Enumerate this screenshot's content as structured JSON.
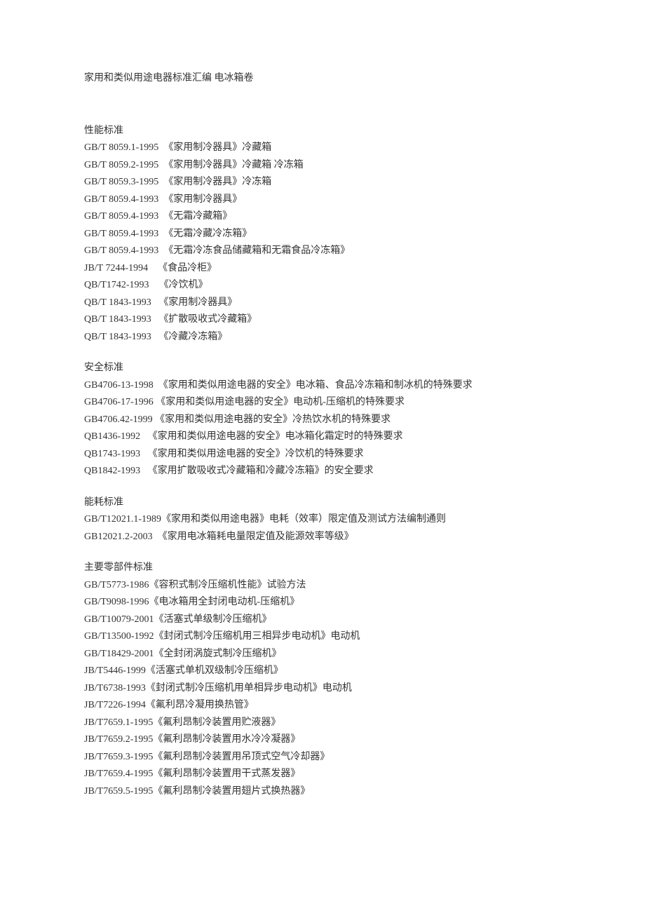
{
  "title": "家用和类似用途电器标准汇编 电冰箱卷",
  "sections": [
    {
      "header": "性能标准",
      "entries": [
        {
          "code": "GB/T 8059.1-1995",
          "sep": "  ",
          "text": "《家用制冷器具》冷藏箱"
        },
        {
          "code": "GB/T 8059.2-1995",
          "sep": "  ",
          "text": "《家用制冷器具》冷藏箱 冷冻箱"
        },
        {
          "code": "GB/T 8059.3-1995",
          "sep": "  ",
          "text": "《家用制冷器具》冷冻箱"
        },
        {
          "code": "GB/T 8059.4-1993",
          "sep": "  ",
          "text": "《家用制冷器具》"
        },
        {
          "code": "GB/T 8059.4-1993",
          "sep": "  ",
          "text": "《无霜冷藏箱》"
        },
        {
          "code": "GB/T 8059.4-1993",
          "sep": "  ",
          "text": "《无霜冷藏冷冻箱》"
        },
        {
          "code": "GB/T 8059.4-1993",
          "sep": "  ",
          "text": "《无霜冷冻食品储藏箱和无霜食品冷冻箱》"
        },
        {
          "code": "JB/T 7244-1994",
          "sep": "    ",
          "text": "《食品冷柜》"
        },
        {
          "code": "QB/T1742-1993",
          "sep": "    ",
          "text": "《冷饮机》"
        },
        {
          "code": "QB/T 1843-1993",
          "sep": "   ",
          "text": "《家用制冷器具》"
        },
        {
          "code": "QB/T 1843-1993",
          "sep": "   ",
          "text": "《扩散吸收式冷藏箱》"
        },
        {
          "code": "QB/T 1843-1993",
          "sep": "   ",
          "text": "《冷藏冷冻箱》"
        }
      ]
    },
    {
      "header": "安全标准",
      "entries": [
        {
          "code": "GB4706-13-1998",
          "sep": "  ",
          "text": "《家用和类似用途电器的安全》电冰箱、食品冷冻箱和制冰机的特殊要求"
        },
        {
          "code": "GB4706-17-1996",
          "sep": " ",
          "text": "《家用和类似用途电器的安全》电动机-压缩机的特殊要求"
        },
        {
          "code": "GB4706.42-1999",
          "sep": " ",
          "text": "《家用和类似用途电器的安全》冷热饮水机的特殊要求"
        },
        {
          "code": "QB1436-1992",
          "sep": "   ",
          "text": "《家用和类似用途电器的安全》电冰箱化霜定时的特殊要求"
        },
        {
          "code": "QB1743-1993",
          "sep": "   ",
          "text": "《家用和类似用途电器的安全》冷饮机的特殊要求"
        },
        {
          "code": "QB1842-1993",
          "sep": "   ",
          "text": "《家用扩散吸收式冷藏箱和冷藏冷冻箱》的安全要求"
        }
      ]
    },
    {
      "header": "能耗标准",
      "entries": [
        {
          "code": "GB/T12021.1-1989",
          "sep": "",
          "text": "《家用和类似用途电器》电耗（效率）限定值及测试方法编制通则"
        },
        {
          "code": "GB12021.2-2003",
          "sep": "  ",
          "text": "《家用电冰箱耗电量限定值及能源效率等级》"
        }
      ]
    },
    {
      "header": "主要零部件标准",
      "entries": [
        {
          "code": "GB/T5773-1986",
          "sep": "",
          "text": "《容积式制冷压缩机性能》试验方法"
        },
        {
          "code": "GB/T9098-1996",
          "sep": "",
          "text": "《电冰箱用全封闭电动机-压缩机》"
        },
        {
          "code": "GB/T10079-2001",
          "sep": "",
          "text": "《活塞式单级制冷压缩机》"
        },
        {
          "code": "GB/T13500-1992",
          "sep": "",
          "text": "《封闭式制冷压缩机用三相异步电动机》电动机"
        },
        {
          "code": "GB/T18429-2001",
          "sep": "",
          "text": "《全封闭涡旋式制冷压缩机》"
        },
        {
          "code": "JB/T5446-1999",
          "sep": "",
          "text": "《活塞式单机双级制冷压缩机》"
        },
        {
          "code": "JB/T6738-1993",
          "sep": "",
          "text": "《封闭式制冷压缩机用单相异步电动机》电动机"
        },
        {
          "code": "JB/T7226-1994",
          "sep": "",
          "text": "《氟利昂冷凝用换热管》"
        },
        {
          "code": "JB/T7659.1-1995",
          "sep": "",
          "text": "《氟利昂制冷装置用贮液器》"
        },
        {
          "code": "JB/T7659.2-1995",
          "sep": "",
          "text": "《氟利昂制冷装置用水冷冷凝器》"
        },
        {
          "code": "JB/T7659.3-1995",
          "sep": "",
          "text": "《氟利昂制冷装置用吊顶式空气冷却器》"
        },
        {
          "code": "JB/T7659.4-1995",
          "sep": "",
          "text": "《氟利昂制冷装置用干式蒸发器》"
        },
        {
          "code": "JB/T7659.5-1995",
          "sep": "",
          "text": "《氟利昂制冷装置用翅片式换热器》"
        }
      ]
    }
  ]
}
